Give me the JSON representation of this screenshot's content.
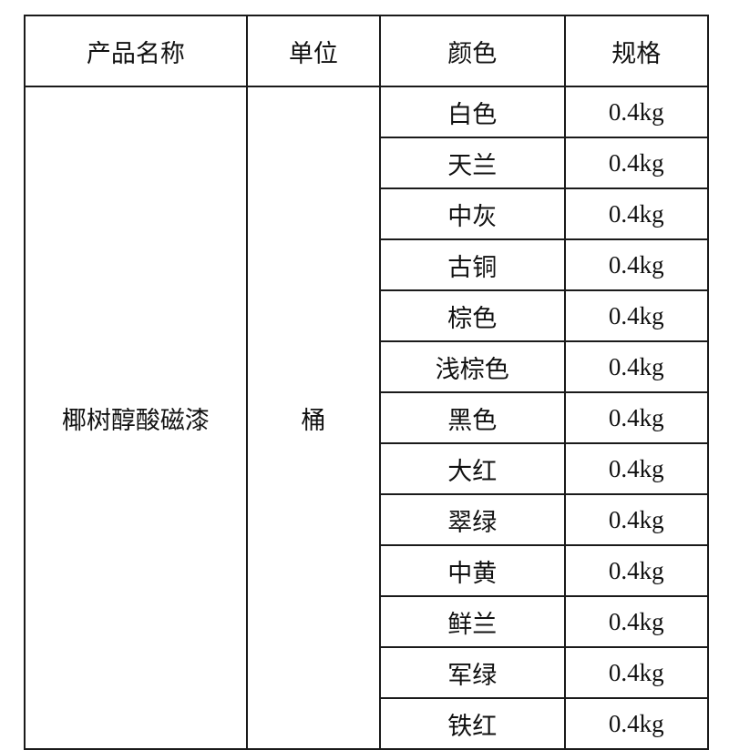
{
  "table": {
    "type": "table",
    "background_color": "#ffffff",
    "border_color": "#1a1a1a",
    "border_width": 2,
    "font_family": "SimSun",
    "header_fontsize": 27,
    "cell_fontsize": 27,
    "text_color": "#111111",
    "columns": [
      {
        "key": "name",
        "label": "产品名称",
        "width_pct": 32.5,
        "align": "center"
      },
      {
        "key": "unit",
        "label": "单位",
        "width_pct": 19.5,
        "align": "center"
      },
      {
        "key": "color",
        "label": "颜色",
        "width_pct": 27.0,
        "align": "center"
      },
      {
        "key": "spec",
        "label": "规格",
        "width_pct": 21.0,
        "align": "center"
      }
    ],
    "merged": {
      "name": {
        "text": "椰树醇酸磁漆",
        "rowspan": 13
      },
      "unit": {
        "text": "桶",
        "rowspan": 13
      }
    },
    "rows": [
      {
        "color": "白色",
        "spec": "0.4kg"
      },
      {
        "color": "天兰",
        "spec": "0.4kg"
      },
      {
        "color": "中灰",
        "spec": "0.4kg"
      },
      {
        "color": "古铜",
        "spec": "0.4kg"
      },
      {
        "color": "棕色",
        "spec": "0.4kg"
      },
      {
        "color": "浅棕色",
        "spec": "0.4kg"
      },
      {
        "color": "黑色",
        "spec": "0.4kg"
      },
      {
        "color": "大红",
        "spec": "0.4kg"
      },
      {
        "color": "翠绿",
        "spec": "0.4kg"
      },
      {
        "color": "中黄",
        "spec": "0.4kg"
      },
      {
        "color": "鲜兰",
        "spec": "0.4kg"
      },
      {
        "color": "军绿",
        "spec": "0.4kg"
      },
      {
        "color": "铁红",
        "spec": "0.4kg"
      }
    ]
  }
}
